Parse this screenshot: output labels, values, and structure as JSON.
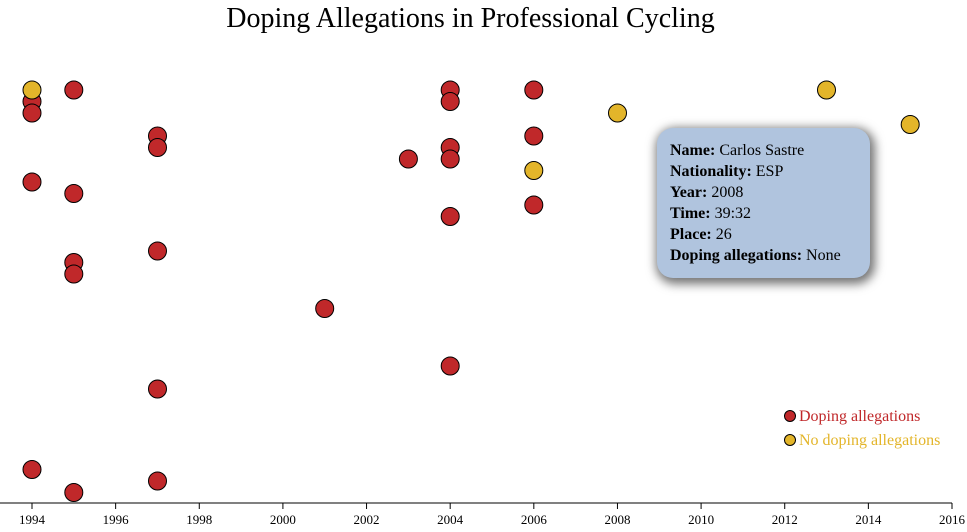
{
  "chart_data": {
    "type": "scatter",
    "title": "Doping Allegations in Professional Cycling",
    "xlim": [
      1994,
      2016
    ],
    "x_ticks": [
      "1994",
      "1996",
      "1998",
      "2000",
      "2002",
      "2004",
      "2006",
      "2008",
      "2010",
      "2012",
      "2014",
      "2016"
    ],
    "y_axis_shown": false,
    "grid": false,
    "legend": {
      "placement": "bottom-right",
      "entries": [
        {
          "label": "Doping allegations",
          "color": "#c0282a"
        },
        {
          "label": "No doping allegations",
          "color": "#e3b52a"
        }
      ]
    },
    "series": [
      {
        "name": "Doping allegations",
        "color": "#c0282a",
        "points": [
          {
            "year": 1994,
            "rank": 2
          },
          {
            "year": 1994,
            "rank": 3
          },
          {
            "year": 1994,
            "rank": 9
          },
          {
            "year": 1994,
            "rank": 34
          },
          {
            "year": 1995,
            "rank": 1
          },
          {
            "year": 1995,
            "rank": 10
          },
          {
            "year": 1995,
            "rank": 16
          },
          {
            "year": 1995,
            "rank": 17
          },
          {
            "year": 1995,
            "rank": 36
          },
          {
            "year": 1997,
            "rank": 5
          },
          {
            "year": 1997,
            "rank": 6
          },
          {
            "year": 1997,
            "rank": 15
          },
          {
            "year": 1997,
            "rank": 27
          },
          {
            "year": 1997,
            "rank": 35
          },
          {
            "year": 2001,
            "rank": 20
          },
          {
            "year": 2003,
            "rank": 7
          },
          {
            "year": 2004,
            "rank": 1
          },
          {
            "year": 2004,
            "rank": 2
          },
          {
            "year": 2004,
            "rank": 6
          },
          {
            "year": 2004,
            "rank": 7
          },
          {
            "year": 2004,
            "rank": 12
          },
          {
            "year": 2004,
            "rank": 25
          },
          {
            "year": 2006,
            "rank": 1
          },
          {
            "year": 2006,
            "rank": 5
          },
          {
            "year": 2006,
            "rank": 11
          }
        ]
      },
      {
        "name": "No doping allegations",
        "color": "#e3b52a",
        "points": [
          {
            "year": 1994,
            "rank": 1
          },
          {
            "year": 2006,
            "rank": 8
          },
          {
            "year": 2008,
            "rank": 3
          },
          {
            "year": 2013,
            "rank": 1
          },
          {
            "year": 2015,
            "rank": 4
          }
        ]
      }
    ]
  },
  "tooltip": {
    "name_label": "Name:",
    "name_value": "Carlos Sastre",
    "nationality_label": "Nationality:",
    "nationality_value": "ESP",
    "year_label": "Year:",
    "year_value": "2008",
    "time_label": "Time:",
    "time_value": "39:32",
    "place_label": "Place:",
    "place_value": "26",
    "allegations_label": "Doping allegations:",
    "allegations_value": "None"
  }
}
